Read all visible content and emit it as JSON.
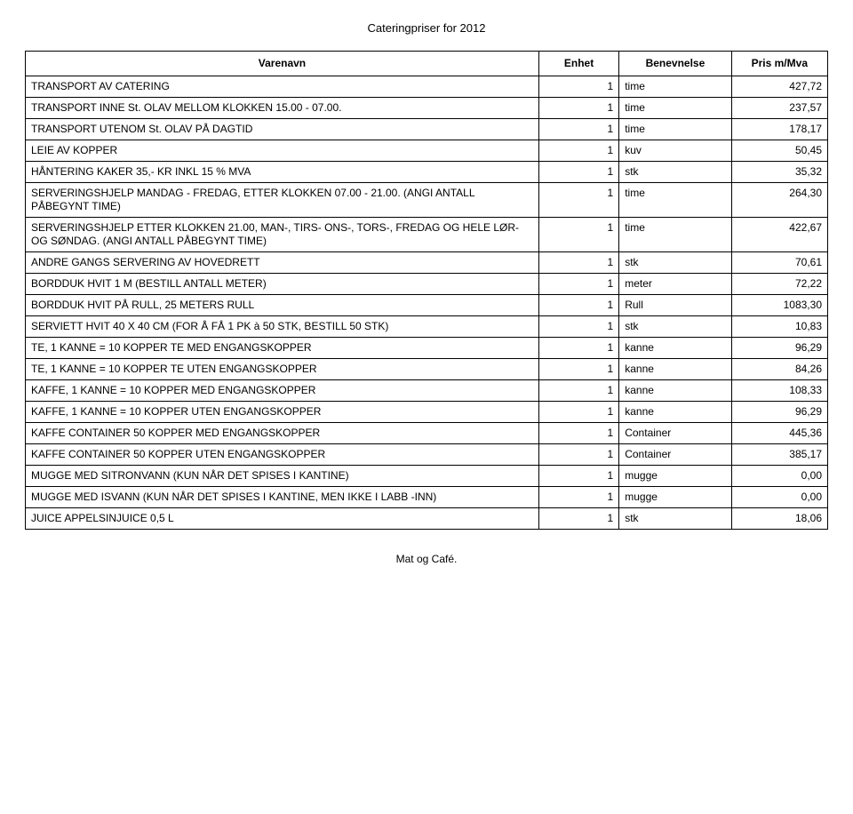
{
  "title": "Cateringpriser for 2012",
  "footer": "Mat og Café.",
  "headers": {
    "name": "Varenavn",
    "unit": "Enhet",
    "desc": "Benevnelse",
    "price": "Pris m/Mva"
  },
  "style": {
    "background_color": "#ffffff",
    "text_color": "#000000",
    "border_color": "#000000",
    "font_family": "Arial",
    "body_fontsize_pt": 9,
    "title_fontsize_pt": 10,
    "column_widths_pct": [
      64,
      10,
      14,
      12
    ],
    "alignment": {
      "name": "left",
      "unit": "right",
      "desc": "left",
      "price": "right"
    }
  },
  "rows": [
    {
      "name": "TRANSPORT AV CATERING",
      "unit": "1",
      "desc": "time",
      "price": "427,72"
    },
    {
      "name": "TRANSPORT INNE St. OLAV MELLOM KLOKKEN 15.00 - 07.00.",
      "unit": "1",
      "desc": "time",
      "price": "237,57"
    },
    {
      "name": "TRANSPORT UTENOM St. OLAV PÅ DAGTID",
      "unit": "1",
      "desc": "time",
      "price": "178,17"
    },
    {
      "name": "LEIE AV KOPPER",
      "unit": "1",
      "desc": "kuv",
      "price": "50,45"
    },
    {
      "name": "HÅNTERING KAKER 35,- KR INKL 15 % MVA",
      "unit": "1",
      "desc": "stk",
      "price": "35,32"
    },
    {
      "name": "SERVERINGSHJELP MANDAG - FREDAG, ETTER KLOKKEN 07.00 - 21.00. (ANGI ANTALL PÅBEGYNT TIME)",
      "unit": "1",
      "desc": "time",
      "price": "264,30"
    },
    {
      "name": "SERVERINGSHJELP ETTER KLOKKEN 21.00, MAN-, TIRS- ONS-, TORS-, FREDAG OG HELE LØR- OG SØNDAG. (ANGI ANTALL PÅBEGYNT TIME)",
      "unit": "1",
      "desc": "time",
      "price": "422,67"
    },
    {
      "name": "ANDRE GANGS SERVERING AV HOVEDRETT",
      "unit": "1",
      "desc": "stk",
      "price": "70,61"
    },
    {
      "name": "BORDDUK HVIT 1 M (BESTILL ANTALL METER)",
      "unit": "1",
      "desc": "meter",
      "price": "72,22"
    },
    {
      "name": "BORDDUK HVIT PÅ RULL, 25 METERS RULL",
      "unit": "1",
      "desc": "Rull",
      "price": "1083,30"
    },
    {
      "name": "SERVIETT HVIT 40 X 40 CM (FOR Å FÅ 1 PK à 50 STK, BESTILL 50 STK)",
      "unit": "1",
      "desc": "stk",
      "price": "10,83"
    },
    {
      "name": "TE, 1 KANNE = 10 KOPPER TE MED ENGANGSKOPPER",
      "unit": "1",
      "desc": "kanne",
      "price": "96,29"
    },
    {
      "name": "TE, 1 KANNE = 10 KOPPER TE UTEN ENGANGSKOPPER",
      "unit": "1",
      "desc": "kanne",
      "price": "84,26"
    },
    {
      "name": "KAFFE, 1 KANNE = 10 KOPPER MED ENGANGSKOPPER",
      "unit": "1",
      "desc": "kanne",
      "price": "108,33"
    },
    {
      "name": "KAFFE, 1 KANNE = 10 KOPPER UTEN ENGANGSKOPPER",
      "unit": "1",
      "desc": "kanne",
      "price": "96,29"
    },
    {
      "name": "KAFFE CONTAINER 50 KOPPER MED ENGANGSKOPPER",
      "unit": "1",
      "desc": "Container",
      "price": "445,36"
    },
    {
      "name": "KAFFE CONTAINER 50 KOPPER UTEN ENGANGSKOPPER",
      "unit": "1",
      "desc": "Container",
      "price": "385,17"
    },
    {
      "name": "MUGGE MED SITRONVANN (KUN NÅR DET SPISES I KANTINE)",
      "unit": "1",
      "desc": "mugge",
      "price": "0,00"
    },
    {
      "name": "MUGGE MED ISVANN (KUN NÅR DET SPISES I KANTINE, MEN IKKE I LABB -INN)",
      "unit": "1",
      "desc": "mugge",
      "price": "0,00"
    },
    {
      "name": "JUICE APPELSINJUICE 0,5 L",
      "unit": "1",
      "desc": "stk",
      "price": "18,06"
    }
  ]
}
